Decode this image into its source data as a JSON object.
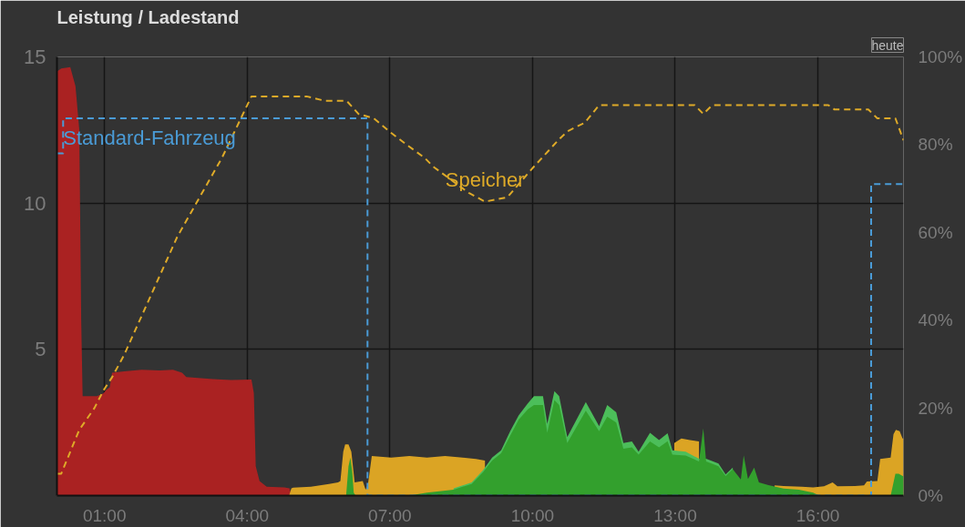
{
  "chart_data": {
    "type": "area",
    "title": "Leistung / Ladestand",
    "annotations": [
      "heute"
    ],
    "xlim": [
      0,
      17.8
    ],
    "xticks": [
      {
        "value": 1,
        "label": "01:00"
      },
      {
        "value": 4,
        "label": "04:00"
      },
      {
        "value": 7,
        "label": "07:00"
      },
      {
        "value": 10,
        "label": "10:00"
      },
      {
        "value": 13,
        "label": "13:00"
      },
      {
        "value": 16,
        "label": "16:00"
      }
    ],
    "ylim": [
      0,
      15
    ],
    "yticks": [
      5,
      10,
      15
    ],
    "y2lim": [
      0,
      100
    ],
    "y2ticks": [
      {
        "value": 0,
        "label": "0%"
      },
      {
        "value": 20,
        "label": "20%"
      },
      {
        "value": 40,
        "label": "40%"
      },
      {
        "value": 60,
        "label": "60%"
      },
      {
        "value": 80,
        "label": "80%"
      },
      {
        "value": 100,
        "label": "100%"
      }
    ],
    "grid": true,
    "series": [
      {
        "color": "#aa2222",
        "x": [
          0,
          0.09,
          0.28,
          0.39,
          0.47,
          0.51,
          0.54,
          0.66,
          0.84,
          0.98,
          1.03,
          1.11,
          1.16,
          1.41,
          1.78,
          2.16,
          2.44,
          2.63,
          2.72,
          3.28,
          3.66,
          4.09,
          4.14,
          4.18,
          4.26,
          4.41,
          4.78,
          4.89,
          4.93
        ],
        "values": [
          14.5,
          14.6,
          14.65,
          14.0,
          12.5,
          6.0,
          3.4,
          3.4,
          3.4,
          3.5,
          3.6,
          3.7,
          4.2,
          4.25,
          4.3,
          4.28,
          4.3,
          4.2,
          4.05,
          3.98,
          3.95,
          3.97,
          3.5,
          1.0,
          0.5,
          0.3,
          0.28,
          0.25,
          0
        ]
      },
      {
        "color": "#dba424",
        "x": [
          4.88,
          4.93,
          4.97,
          5.34,
          5.72,
          5.91,
          5.96,
          6.02,
          6.06,
          6.13,
          6.19,
          6.23,
          6.26,
          6.43,
          6.49,
          6.54,
          6.62,
          7.03,
          7.41,
          7.78,
          8.16,
          8.53,
          8.81,
          9.0,
          10.5,
          12.98,
          13.13,
          13.31,
          13.5,
          14.3,
          15.09,
          15.28,
          15.66,
          15.9,
          16.13,
          16.31,
          16.41,
          16.78,
          16.97,
          17.03,
          17.25,
          17.31,
          17.53,
          17.59,
          17.64,
          17.72,
          17.78,
          17.8
        ],
        "values": [
          0,
          0.25,
          0.27,
          0.3,
          0.4,
          0.45,
          0.5,
          1.5,
          1.75,
          1.75,
          1.5,
          0.9,
          0.45,
          0.5,
          0.2,
          0.4,
          1.35,
          1.3,
          1.35,
          1.3,
          1.35,
          1.3,
          1.25,
          1.2,
          null,
          1.8,
          1.95,
          1.9,
          1.85,
          null,
          0.35,
          0.33,
          0.3,
          0.28,
          0.32,
          0.45,
          0.32,
          0.33,
          0.35,
          0.48,
          0.5,
          1.25,
          1.3,
          2.1,
          2.25,
          2.2,
          1.95,
          1.95
        ]
      },
      {
        "color": "#4cbe5a",
        "x": [
          8.34,
          8.72,
          8.96,
          9.15,
          9.34,
          9.53,
          9.71,
          9.9,
          10.03,
          10.22,
          10.31,
          10.46,
          10.56,
          10.73,
          11.12,
          11.4,
          11.57,
          11.76,
          11.91,
          12.09,
          12.23,
          12.47,
          12.66,
          12.84,
          12.94,
          13.22,
          13.5,
          13.65,
          13.91,
          14.06,
          14.21
        ],
        "values": [
          0.25,
          0.45,
          0.87,
          1.3,
          1.55,
          2.2,
          2.75,
          3.15,
          3.4,
          3.4,
          2.45,
          3.57,
          3.4,
          2.0,
          3.2,
          2.37,
          3.1,
          2.85,
          1.8,
          1.85,
          1.5,
          2.15,
          1.9,
          2.13,
          1.55,
          1.5,
          1.26,
          1.26,
          1.1,
          0.72,
          0.96
        ]
      },
      {
        "color": "#33a02d",
        "x": [
          6.0,
          6.08,
          6.13,
          6.17,
          6.21,
          6.24,
          6.28,
          7.41,
          7.78,
          8.34,
          8.72,
          8.96,
          9.15,
          9.34,
          9.53,
          9.71,
          9.9,
          10.03,
          10.22,
          10.31,
          10.46,
          10.56,
          10.73,
          11.12,
          11.4,
          11.57,
          11.76,
          11.91,
          12.09,
          12.23,
          12.47,
          12.66,
          12.84,
          12.94,
          13.22,
          13.5,
          13.59,
          13.65,
          13.91,
          14.06,
          14.21,
          14.38,
          14.44,
          14.53,
          14.66,
          14.76,
          14.96,
          15.28,
          15.6,
          15.9,
          16.03,
          17.53,
          17.63,
          17.7,
          17.8
        ],
        "values": [
          0,
          0,
          1.0,
          1.3,
          0.8,
          0.1,
          0,
          0,
          0.1,
          0.2,
          0.4,
          0.8,
          1.2,
          1.45,
          2.05,
          2.6,
          2.95,
          3.1,
          3.1,
          2.15,
          3.27,
          3.1,
          1.8,
          2.9,
          2.2,
          2.7,
          2.5,
          1.6,
          1.65,
          1.4,
          1.85,
          1.65,
          1.86,
          1.4,
          1.37,
          1.17,
          2.3,
          1.17,
          1.0,
          0.67,
          0.9,
          0.55,
          1.38,
          0.57,
          0.96,
          0.45,
          0.36,
          0.24,
          0.2,
          0.1,
          0,
          0,
          0.75,
          0.75,
          0.65
        ]
      },
      {
        "type": "step",
        "name": "Standard-Fahrzeug",
        "color": "#4a9bd6",
        "axis": "y2",
        "line_style": "dashed",
        "x": [
          0,
          0.13,
          6.53,
          17.12,
          17.8
        ],
        "values": [
          78,
          86,
          0,
          71,
          71
        ]
      },
      {
        "type": "line",
        "name": "Speicher",
        "color": "#deaa28",
        "axis": "y2",
        "line_style": "dashed",
        "x": [
          0,
          0.09,
          0.28,
          0.47,
          0.79,
          0.98,
          1.16,
          1.41,
          2.53,
          3.47,
          4.09,
          4.22,
          5.25,
          5.63,
          6.09,
          6.34,
          6.66,
          6.99,
          7.35,
          7.73,
          7.91,
          8.66,
          9.0,
          9.47,
          9.79,
          10.03,
          10.54,
          10.73,
          10.91,
          11.1,
          11.4,
          13.41,
          13.59,
          13.78,
          16.22,
          16.35,
          17.06,
          17.25,
          17.53,
          17.63,
          17.8
        ],
        "values": [
          5,
          5,
          10,
          15,
          20,
          24,
          27,
          32,
          59,
          77,
          91,
          91,
          91,
          90,
          90,
          87,
          86,
          83,
          80,
          77,
          75,
          69,
          67,
          68,
          72,
          75,
          81,
          83,
          84,
          85,
          89,
          89,
          87,
          89,
          89,
          88,
          88,
          86,
          86,
          86,
          81
        ]
      }
    ]
  }
}
